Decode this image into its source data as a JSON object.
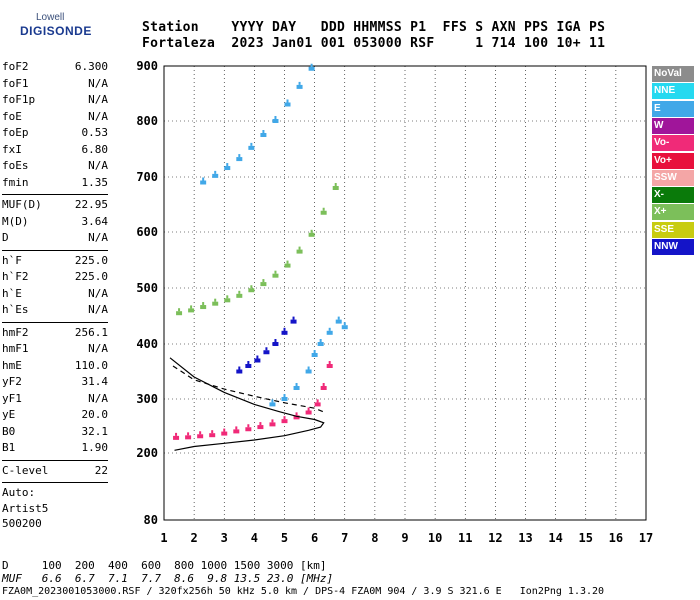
{
  "logo": {
    "top": "Lowell",
    "bottom": "DIGISONDE"
  },
  "header": {
    "labels_line": "Station    YYYY DAY   DDD HHMMSS P1  FFS S AXN PPS IGA PS",
    "values_line": "Fortaleza  2023 Jan01 001 053000 RSF     1 714 100 10+ 11"
  },
  "params_group1": [
    {
      "name": "foF2",
      "value": "6.300"
    },
    {
      "name": "foF1",
      "value": "N/A"
    },
    {
      "name": "foF1p",
      "value": "N/A"
    },
    {
      "name": "foE",
      "value": "N/A"
    },
    {
      "name": "foEp",
      "value": "0.53"
    },
    {
      "name": "fxI",
      "value": "6.80"
    },
    {
      "name": "foEs",
      "value": "N/A"
    },
    {
      "name": "fmin",
      "value": "1.35"
    }
  ],
  "params_group2": [
    {
      "name": "MUF(D)",
      "value": "22.95"
    },
    {
      "name": "M(D)",
      "value": "3.64"
    },
    {
      "name": "D",
      "value": "N/A"
    }
  ],
  "params_group3": [
    {
      "name": "h`F",
      "value": "225.0"
    },
    {
      "name": "h`F2",
      "value": "225.0"
    },
    {
      "name": "h`E",
      "value": "N/A"
    },
    {
      "name": "h`Es",
      "value": "N/A"
    }
  ],
  "params_group4": [
    {
      "name": "hmF2",
      "value": "256.1"
    },
    {
      "name": "hmF1",
      "value": "N/A"
    },
    {
      "name": "hmE",
      "value": "110.0"
    },
    {
      "name": "yF2",
      "value": "31.4"
    },
    {
      "name": "yF1",
      "value": "N/A"
    },
    {
      "name": "yE",
      "value": "20.0"
    },
    {
      "name": "B0",
      "value": "32.1"
    },
    {
      "name": "B1",
      "value": "1.90"
    }
  ],
  "params_group5": [
    {
      "name": "C-level",
      "value": "22"
    }
  ],
  "auto_lines": [
    "Auto:",
    "Artist5",
    "500200"
  ],
  "legend": [
    {
      "label": "NoVal",
      "color": "#8c8c8c"
    },
    {
      "label": "NNE",
      "color": "#25d9f0"
    },
    {
      "label": "E",
      "color": "#41a8e8"
    },
    {
      "label": "W",
      "color": "#a0159a"
    },
    {
      "label": "Vo-",
      "color": "#f02a78"
    },
    {
      "label": "Vo+",
      "color": "#e8103c"
    },
    {
      "label": "SSW",
      "color": "#f4a6a6"
    },
    {
      "label": "X-",
      "color": "#0a7a0a"
    },
    {
      "label": "X+",
      "color": "#7cbf5a"
    },
    {
      "label": "SSE",
      "color": "#c8cc10"
    },
    {
      "label": "NNW",
      "color": "#1414c8"
    }
  ],
  "bottom_lines": {
    "d_line": "D     100  200  400  600  800 1000 1500 3000 [km]",
    "muf_line": "MUF   6.6  6.7  7.1  7.7  8.6  9.8 13.5 23.0 [MHz]",
    "file_line": "FZA0M_2023001053000.RSF / 320fx256h 50 kHz 5.0 km / DPS-4 FZA0M 904 / 3.9 S 321.6 E   Ion2Png 1.3.20"
  },
  "chart_data": {
    "type": "scatter",
    "title": "",
    "xlabel": "",
    "ylabel": "",
    "xlim": [
      1,
      17
    ],
    "ylim": [
      80,
      900
    ],
    "x_ticks": [
      "1",
      "2",
      "3",
      "4",
      "5",
      "6",
      "7",
      "8",
      "9",
      "10",
      "11",
      "12",
      "13",
      "14",
      "15",
      "16",
      "17"
    ],
    "y_ticks": [
      "80",
      "200",
      "300",
      "400",
      "500",
      "600",
      "700",
      "800",
      "900"
    ],
    "y_tick_values": [
      80,
      200,
      300,
      400,
      500,
      600,
      700,
      800,
      900
    ],
    "grid": true,
    "series": [
      {
        "name": "Vo-",
        "points": [
          [
            1.4,
            228
          ],
          [
            1.8,
            229
          ],
          [
            2.2,
            231
          ],
          [
            2.6,
            233
          ],
          [
            3.0,
            236
          ],
          [
            3.4,
            240
          ],
          [
            3.8,
            244
          ],
          [
            4.2,
            248
          ],
          [
            4.6,
            253
          ],
          [
            5.0,
            259
          ],
          [
            5.4,
            266
          ],
          [
            5.8,
            275
          ],
          [
            6.1,
            290
          ],
          [
            6.3,
            320
          ],
          [
            6.5,
            360
          ]
        ]
      },
      {
        "name": "X+",
        "points": [
          [
            1.5,
            455
          ],
          [
            1.9,
            460
          ],
          [
            2.3,
            466
          ],
          [
            2.7,
            472
          ],
          [
            3.1,
            478
          ],
          [
            3.5,
            486
          ],
          [
            3.9,
            496
          ],
          [
            4.3,
            507
          ],
          [
            4.7,
            522
          ],
          [
            5.1,
            540
          ],
          [
            5.5,
            565
          ],
          [
            5.9,
            595
          ],
          [
            6.3,
            635
          ],
          [
            6.7,
            680
          ]
        ]
      },
      {
        "name": "E",
        "points": [
          [
            2.3,
            690
          ],
          [
            2.7,
            702
          ],
          [
            3.1,
            716
          ],
          [
            3.5,
            732
          ],
          [
            3.9,
            752
          ],
          [
            4.3,
            775
          ],
          [
            4.7,
            800
          ],
          [
            5.1,
            830
          ],
          [
            5.5,
            862
          ],
          [
            5.9,
            895
          ]
        ]
      },
      {
        "name": "E",
        "points": [
          [
            4.6,
            290
          ],
          [
            5.0,
            300
          ],
          [
            5.4,
            320
          ],
          [
            5.8,
            350
          ],
          [
            6.0,
            380
          ],
          [
            6.2,
            400
          ],
          [
            6.5,
            420
          ],
          [
            6.8,
            440
          ],
          [
            7.0,
            430
          ]
        ]
      },
      {
        "name": "NNW",
        "points": [
          [
            3.5,
            350
          ],
          [
            3.8,
            360
          ],
          [
            4.1,
            370
          ],
          [
            4.4,
            385
          ],
          [
            4.7,
            400
          ],
          [
            5.0,
            420
          ],
          [
            5.3,
            440
          ]
        ]
      }
    ],
    "profile_points": [
      [
        1.35,
        205
      ],
      [
        2,
        212
      ],
      [
        3,
        218
      ],
      [
        4,
        224
      ],
      [
        5,
        232
      ],
      [
        5.8,
        242
      ],
      [
        6.2,
        248
      ],
      [
        6.3,
        256
      ],
      [
        6.0,
        262
      ],
      [
        5.4,
        268
      ],
      [
        4.8,
        277
      ],
      [
        4.0,
        290
      ],
      [
        3.0,
        312
      ],
      [
        2.0,
        340
      ],
      [
        1.2,
        375
      ]
    ],
    "dashed_points": [
      [
        1.3,
        360
      ],
      [
        2,
        335
      ],
      [
        3,
        318
      ],
      [
        4,
        305
      ],
      [
        5,
        293
      ],
      [
        6,
        283
      ],
      [
        6.3,
        276
      ]
    ]
  }
}
